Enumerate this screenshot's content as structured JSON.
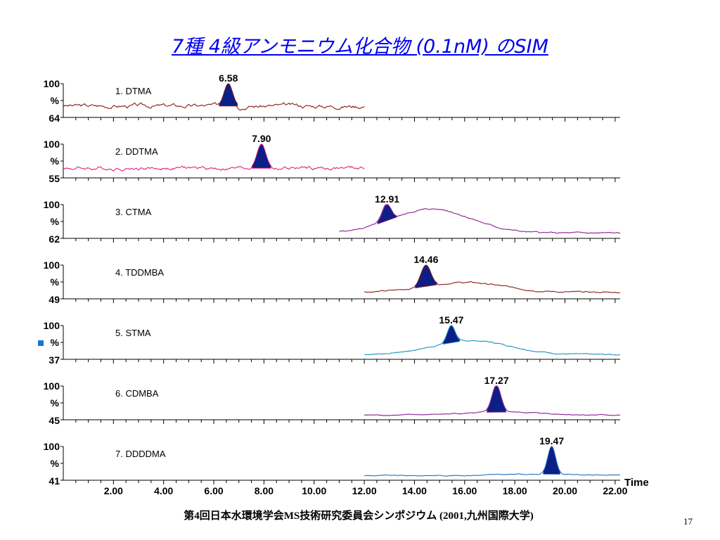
{
  "slide": {
    "title": "7種 4級アンモニウム化合物 (0.1nM) のSIM",
    "footer": "第4回日本水環境学会MS技術研究委員会シンポジウム (2001,九州国際大学)",
    "page_number": "17"
  },
  "chart_data": {
    "type": "line",
    "title": "",
    "xlabel": "Time",
    "ylabel": "%",
    "xlim": [
      0,
      22.2
    ],
    "x_ticks": [
      "2.00",
      "4.00",
      "6.00",
      "8.00",
      "10.00",
      "12.00",
      "14.00",
      "16.00",
      "18.00",
      "20.00",
      "22.00"
    ],
    "grid": false,
    "panels": [
      {
        "name": "1. DTMA",
        "color": "#8b1a1a",
        "y_top": "100",
        "y_mid": "%",
        "y_bottom": "64",
        "peak_label": "6.58",
        "peak_time": 6.58,
        "peak_width": 0.24,
        "trace_start": 0,
        "trace_end": 12.0,
        "baseline": 0.28,
        "noise": 0.09,
        "hump": 0.0,
        "hump_center": 0
      },
      {
        "name": "2. DDTMA",
        "color": "#e0207a",
        "y_top": "100",
        "y_mid": "%",
        "y_bottom": "55",
        "peak_label": "7.90",
        "peak_time": 7.9,
        "peak_width": 0.25,
        "trace_start": 0,
        "trace_end": 12.0,
        "baseline": 0.22,
        "noise": 0.08,
        "hump": 0.0,
        "hump_center": 0
      },
      {
        "name": "3. CTMA",
        "color": "#8a1e90",
        "y_top": "100",
        "y_mid": "%",
        "y_bottom": "62",
        "peak_label": "12.91",
        "peak_time": 12.91,
        "peak_width": 0.25,
        "trace_start": 11.0,
        "trace_end": 22.2,
        "baseline": 0.08,
        "noise": 0.03,
        "hump": 0.78,
        "hump_center": 14.7
      },
      {
        "name": "4. TDDMBA",
        "color": "#8b1a1a",
        "y_top": "100",
        "y_mid": "%",
        "y_bottom": "49",
        "peak_label": "14.46",
        "peak_time": 14.46,
        "peak_width": 0.28,
        "trace_start": 12.0,
        "trace_end": 22.2,
        "baseline": 0.12,
        "noise": 0.03,
        "hump": 0.32,
        "hump_center": 16.0
      },
      {
        "name": "5. STMA",
        "color": "#1f8fc0",
        "y_top": "100",
        "y_mid": "%",
        "y_bottom": "37",
        "peak_label": "15.47",
        "peak_time": 15.47,
        "peak_width": 0.22,
        "trace_start": 12.0,
        "trace_end": 22.2,
        "baseline": 0.06,
        "noise": 0.025,
        "hump": 0.45,
        "hump_center": 16.3
      },
      {
        "name": "6. CDMBA",
        "color": "#8a1e90",
        "y_top": "100",
        "y_mid": "%",
        "y_bottom": "45",
        "peak_label": "17.27",
        "peak_time": 17.27,
        "peak_width": 0.25,
        "trace_start": 12.0,
        "trace_end": 22.2,
        "baseline": 0.06,
        "noise": 0.02,
        "hump": 0.1,
        "hump_center": 17.5
      },
      {
        "name": "7. DDDDMA",
        "color": "#1f6fc0",
        "y_top": "100",
        "y_mid": "%",
        "y_bottom": "41",
        "peak_label": "19.47",
        "peak_time": 19.47,
        "peak_width": 0.22,
        "trace_start": 12.0,
        "trace_end": 22.2,
        "baseline": 0.06,
        "noise": 0.02,
        "hump": 0.05,
        "hump_center": 19.0
      }
    ]
  }
}
